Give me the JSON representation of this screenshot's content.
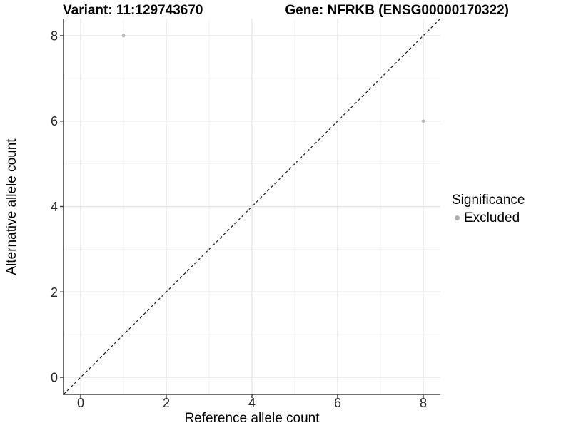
{
  "chart_data": {
    "type": "scatter",
    "title_left": "Variant: 11:129743670",
    "title_right": "Gene: NFRKB (ENSG00000170322)",
    "xlabel": "Reference allele count",
    "ylabel": "Alternative allele count",
    "xlim": [
      -0.4,
      8.4
    ],
    "ylim": [
      -0.4,
      8.4
    ],
    "xticks": [
      0,
      2,
      4,
      6,
      8
    ],
    "yticks": [
      0,
      2,
      4,
      6,
      8
    ],
    "grid": {
      "on": true,
      "line_positions": [
        0,
        1,
        2,
        3,
        4,
        5,
        6,
        7,
        8
      ],
      "major_every": 2,
      "major_color": "#e3e3e3",
      "minor_color": "#efefef"
    },
    "series": [
      {
        "name": "Excluded",
        "color": "#b8b8b8",
        "points": [
          {
            "x": 1,
            "y": 8
          },
          {
            "x": 8,
            "y": 6
          }
        ]
      }
    ],
    "reference_line": {
      "kind": "identity y = x",
      "style": "dashed",
      "color": "#1a1a1a"
    },
    "legend": {
      "title": "Significance",
      "position": "right",
      "items": [
        {
          "label": "Excluded",
          "color": "#b0b0b0"
        }
      ]
    },
    "axis": {
      "line_color": "#404040",
      "tick_color": "#3a3a3a",
      "tick_label_color": "#262626"
    }
  }
}
